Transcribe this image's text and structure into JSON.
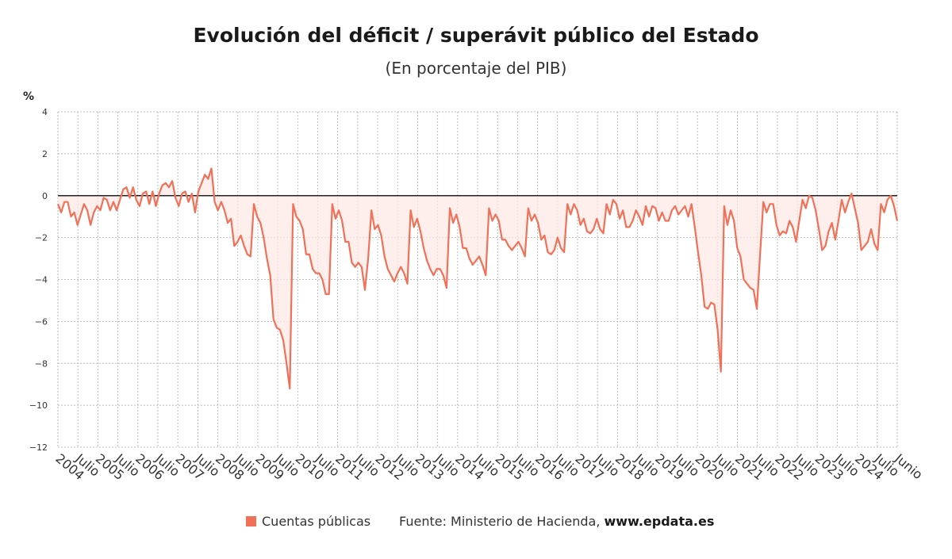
{
  "title": "Evolución del déficit / superávit público del Estado",
  "subtitle": "(En porcentaje del PIB)",
  "unit_label": "%",
  "legend_label": "Cuentas públicas",
  "source_prefix": "Fuente: Ministerio de Hacienda, ",
  "source_site": "www.epdata.es",
  "colors": {
    "line": "#f07058",
    "fill": "#fde8e4",
    "zero_line": "#222222",
    "grid": "#bbbbbb"
  },
  "chart_data": {
    "type": "area",
    "xlabel": "",
    "ylabel": "%",
    "ylim": [
      -12,
      4
    ],
    "yticks": [
      4,
      2,
      0,
      -2,
      -4,
      -6,
      -8,
      -10,
      -12
    ],
    "grid": true,
    "legend_position": "bottom",
    "x_tick_labels": [
      "2004",
      "Julio",
      "2005",
      "Julio",
      "2006",
      "Julio",
      "2007",
      "Julio",
      "2008",
      "Julio",
      "2009",
      "Julio",
      "2010",
      "Julio",
      "2011",
      "Julio",
      "2012",
      "Julio",
      "2013",
      "Julio",
      "2014",
      "Julio",
      "2015",
      "Julio",
      "2016",
      "Julio",
      "2017",
      "Julio",
      "2018",
      "Julio",
      "2019",
      "Julio",
      "2020",
      "Julio",
      "2021",
      "Julio",
      "2022",
      "Julio",
      "2023",
      "Julio",
      "2024",
      "Julio",
      "Junio"
    ],
    "x_start": "2004-01",
    "x_end": "2025-06",
    "series": [
      {
        "name": "Cuentas públicas",
        "values": [
          -0.4,
          -0.8,
          -0.3,
          -0.3,
          -1.0,
          -0.8,
          -1.4,
          -0.9,
          -0.4,
          -0.7,
          -1.4,
          -0.8,
          -0.5,
          -0.7,
          -0.1,
          -0.2,
          -0.7,
          -0.3,
          -0.7,
          -0.2,
          0.3,
          0.4,
          -0.1,
          0.4,
          -0.2,
          -0.5,
          0.1,
          0.2,
          -0.4,
          0.2,
          -0.5,
          0.1,
          0.5,
          0.6,
          0.4,
          0.7,
          -0.1,
          -0.5,
          0.1,
          0.2,
          -0.3,
          0.1,
          -0.8,
          0.2,
          0.6,
          1.0,
          0.8,
          1.3,
          -0.3,
          -0.7,
          -0.3,
          -0.7,
          -1.3,
          -1.1,
          -2.4,
          -2.2,
          -1.9,
          -2.4,
          -2.8,
          -2.9,
          -0.4,
          -1.0,
          -1.3,
          -2.0,
          -3.0,
          -3.8,
          -5.9,
          -6.3,
          -6.4,
          -6.9,
          -8.0,
          -9.2,
          -0.4,
          -1.0,
          -1.2,
          -1.6,
          -2.8,
          -2.8,
          -3.5,
          -3.7,
          -3.7,
          -4.0,
          -4.7,
          -4.7,
          -0.4,
          -1.1,
          -0.7,
          -1.2,
          -2.2,
          -2.2,
          -3.2,
          -3.4,
          -3.2,
          -3.4,
          -4.5,
          -3.0,
          -0.7,
          -1.6,
          -1.4,
          -1.9,
          -2.9,
          -3.5,
          -3.8,
          -4.1,
          -3.7,
          -3.4,
          -3.7,
          -4.2,
          -0.7,
          -1.5,
          -1.1,
          -1.7,
          -2.5,
          -3.1,
          -3.5,
          -3.8,
          -3.5,
          -3.5,
          -3.8,
          -4.4,
          -0.6,
          -1.3,
          -0.9,
          -1.5,
          -2.5,
          -2.5,
          -3.0,
          -3.3,
          -3.1,
          -2.9,
          -3.3,
          -3.8,
          -0.6,
          -1.2,
          -0.9,
          -1.2,
          -2.1,
          -2.1,
          -2.4,
          -2.6,
          -2.4,
          -2.2,
          -2.5,
          -2.9,
          -0.6,
          -1.2,
          -0.9,
          -1.3,
          -2.1,
          -1.9,
          -2.7,
          -2.8,
          -2.6,
          -2.0,
          -2.5,
          -2.7,
          -0.4,
          -0.9,
          -0.4,
          -0.7,
          -1.4,
          -1.1,
          -1.7,
          -1.8,
          -1.6,
          -1.1,
          -1.6,
          -1.8,
          -0.4,
          -0.9,
          -0.2,
          -0.4,
          -1.1,
          -0.7,
          -1.5,
          -1.5,
          -1.2,
          -0.7,
          -1.0,
          -1.4,
          -0.5,
          -1.0,
          -0.5,
          -0.6,
          -1.2,
          -0.8,
          -1.2,
          -1.2,
          -0.7,
          -0.5,
          -0.9,
          -0.7,
          -0.5,
          -1.0,
          -0.4,
          -1.5,
          -2.7,
          -3.8,
          -5.3,
          -5.4,
          -5.1,
          -5.2,
          -6.4,
          -8.4,
          -0.5,
          -1.4,
          -0.7,
          -1.2,
          -2.5,
          -2.9,
          -4.0,
          -4.2,
          -4.4,
          -4.5,
          -5.4,
          -2.8,
          -0.3,
          -0.8,
          -0.4,
          -0.4,
          -1.4,
          -1.9,
          -1.7,
          -1.8,
          -1.2,
          -1.5,
          -2.2,
          -1.2,
          -0.2,
          -0.6,
          0.0,
          -0.1,
          -0.7,
          -1.6,
          -2.6,
          -2.4,
          -1.7,
          -1.3,
          -2.1,
          -1.2,
          -0.2,
          -0.8,
          -0.3,
          0.1,
          -0.6,
          -1.3,
          -2.6,
          -2.4,
          -2.2,
          -1.6,
          -2.3,
          -2.6,
          -0.4,
          -0.8,
          -0.2,
          0.0,
          -0.5,
          -1.2
        ]
      }
    ]
  }
}
